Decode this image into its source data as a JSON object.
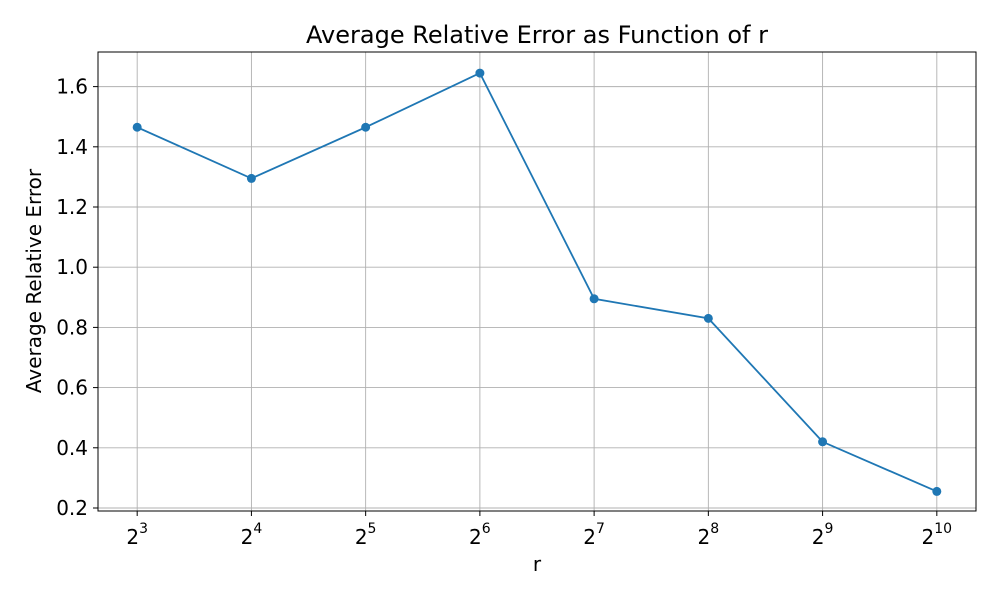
{
  "chart_data": {
    "type": "line",
    "title": "Average Relative Error as Function of r",
    "xlabel": "r",
    "ylabel": "Average Relative Error",
    "x_scale": "log2",
    "x": [
      8,
      16,
      32,
      64,
      128,
      256,
      512,
      1024
    ],
    "x_tick_labels": [
      {
        "base": "2",
        "exp": "3"
      },
      {
        "base": "2",
        "exp": "4"
      },
      {
        "base": "2",
        "exp": "5"
      },
      {
        "base": "2",
        "exp": "6"
      },
      {
        "base": "2",
        "exp": "7"
      },
      {
        "base": "2",
        "exp": "8"
      },
      {
        "base": "2",
        "exp": "9"
      },
      {
        "base": "2",
        "exp": "10"
      }
    ],
    "series": [
      {
        "values": [
          1.465,
          1.295,
          1.465,
          1.645,
          0.895,
          0.83,
          0.42,
          0.255
        ],
        "color": "#1f77b4",
        "marker": "circle"
      }
    ],
    "ylim": [
      0.19,
      1.715
    ],
    "y_ticks": [
      "0.2",
      "0.4",
      "0.6",
      "0.8",
      "1.0",
      "1.2",
      "1.4",
      "1.6"
    ],
    "grid": true,
    "legend": "none"
  }
}
